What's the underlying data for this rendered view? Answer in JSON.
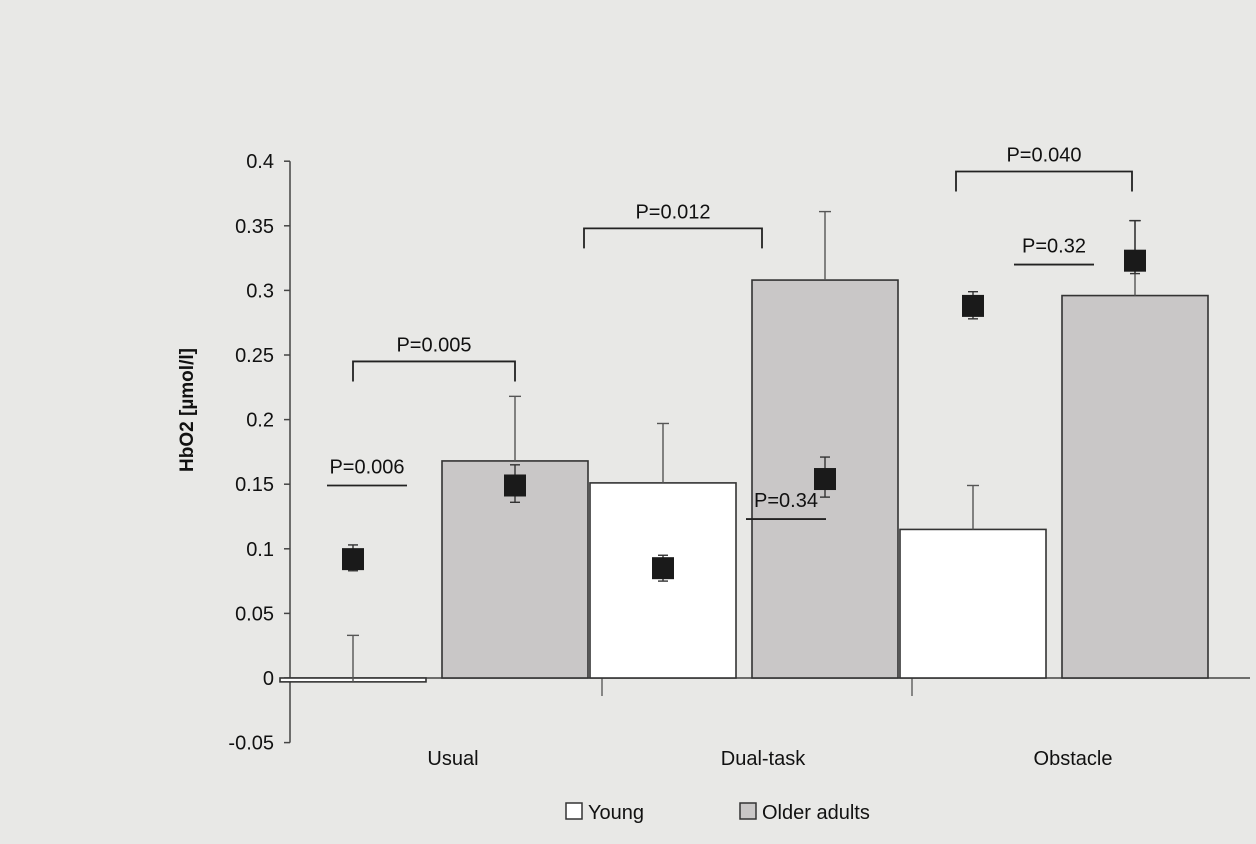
{
  "chart_data": {
    "type": "bar",
    "title": "",
    "xlabel": "",
    "ylabel": "HbO2 [µmol/l]",
    "ylim": [
      -0.05,
      0.4
    ],
    "yticks": [
      "-0.05",
      "0",
      "0.05",
      "0.1",
      "0.15",
      "0.2",
      "0.25",
      "0.3",
      "0.35",
      "0.4"
    ],
    "categories": [
      "Usual",
      "Dual-task",
      "Obstacle"
    ],
    "series": [
      {
        "name": "Young",
        "values": [
          -0.003,
          0.151,
          0.115
        ],
        "error_upper": [
          0.033,
          0.197,
          0.149
        ],
        "fill": "#ffffff"
      },
      {
        "name": "Older adults",
        "values": [
          0.168,
          0.308,
          0.296
        ],
        "error_upper": [
          0.218,
          0.361,
          0.354
        ],
        "fill": "#c9c7c7"
      }
    ],
    "markers": [
      {
        "value": 0.092,
        "low": 0.083,
        "high": 0.103
      },
      {
        "value": 0.149,
        "low": 0.136,
        "high": 0.165
      },
      {
        "value": 0.085,
        "low": 0.075,
        "high": 0.095
      },
      {
        "value": 0.154,
        "low": 0.14,
        "high": 0.171
      },
      {
        "value": 0.288,
        "low": 0.278,
        "high": 0.299
      },
      {
        "value": 0.323,
        "low": 0.313,
        "high": 0.354
      }
    ],
    "significance": [
      {
        "label": "P=0.005",
        "kind": "bracket",
        "y": 0.245
      },
      {
        "label": "P=0.006",
        "kind": "line",
        "y": 0.149
      },
      {
        "label": "P=0.012",
        "kind": "bracket",
        "y": 0.348
      },
      {
        "label": "P=0.34",
        "kind": "line",
        "y": 0.123
      },
      {
        "label": "P=0.040",
        "kind": "bracket",
        "y": 0.392
      },
      {
        "label": "P=0.32",
        "kind": "line",
        "y": 0.32
      }
    ],
    "legend": {
      "position": "bottom",
      "items": [
        {
          "label": "Young",
          "fill": "#ffffff"
        },
        {
          "label": "Older adults",
          "fill": "#c9c7c7"
        }
      ]
    },
    "grid": false,
    "colors": {
      "marker": "#1a1a1a",
      "axis": "#444444",
      "background": "#e8e8e6"
    }
  }
}
